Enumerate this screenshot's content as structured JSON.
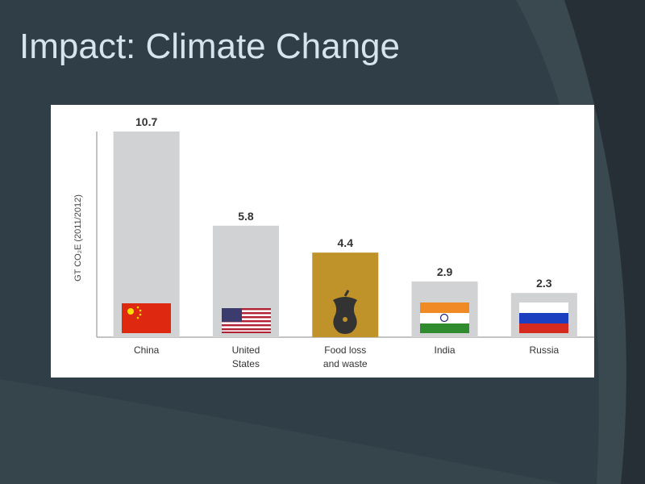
{
  "slide_title": "Impact: Climate Change",
  "chart_data": {
    "type": "bar",
    "y_label": "GT CO₂E (2011/2012)",
    "categories": [
      "China",
      "United States",
      "Food loss and waste",
      "India",
      "Russia"
    ],
    "values": [
      10.7,
      5.8,
      4.4,
      2.9,
      2.3
    ],
    "colors": [
      "#d1d2d4",
      "#d1d2d4",
      "#c0922a",
      "#d1d2d4",
      "#d1d2d4"
    ],
    "ylim": [
      0,
      10.7
    ]
  }
}
